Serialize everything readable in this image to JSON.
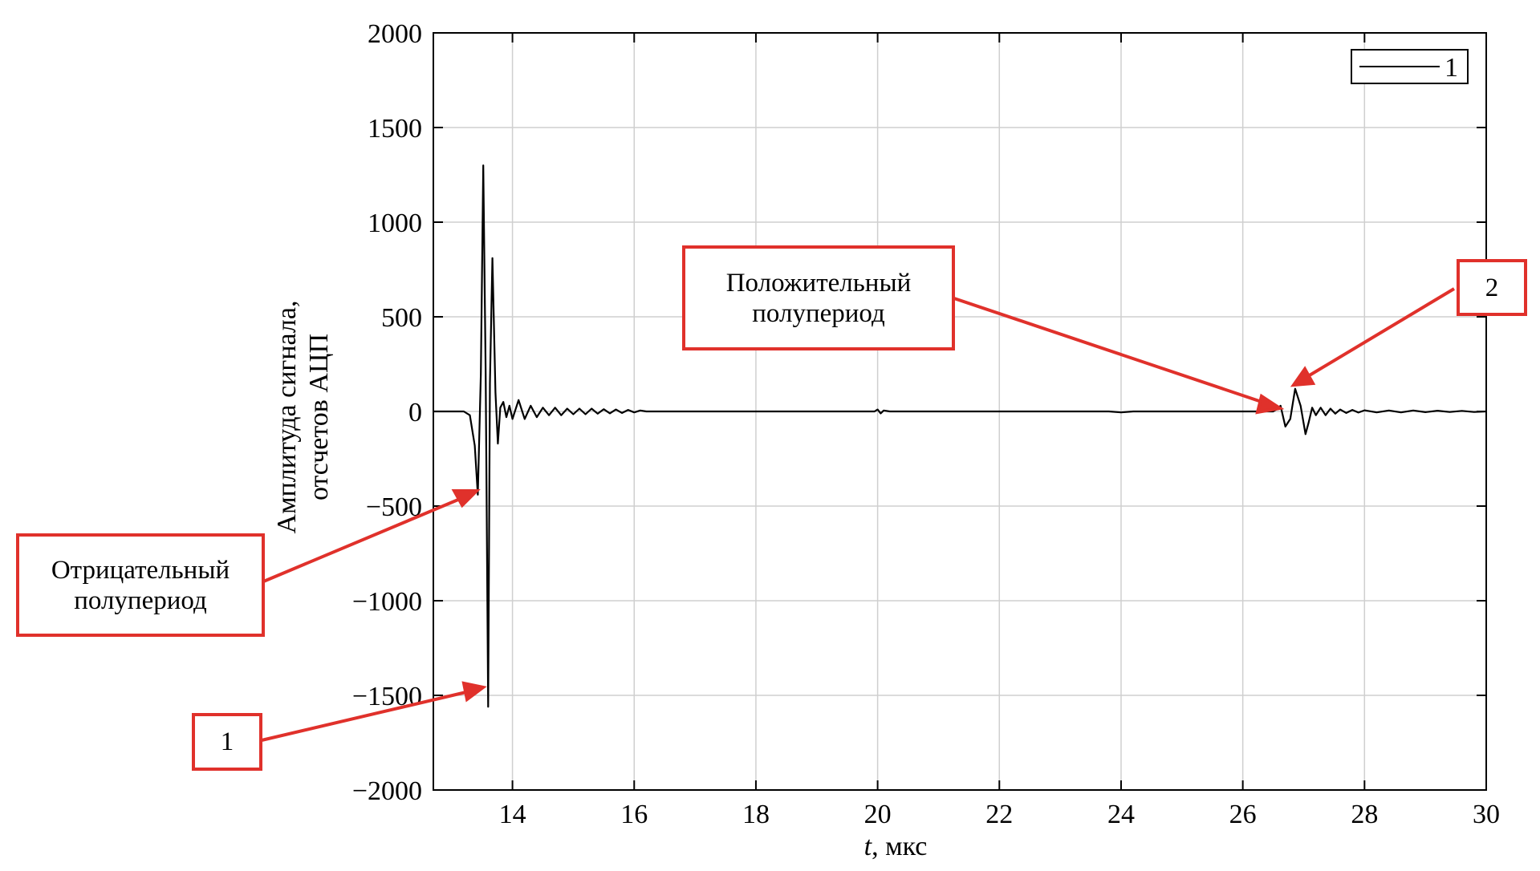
{
  "chart_data": {
    "type": "line",
    "xlabel_italic": "t",
    "xlabel_rest": ", мкс",
    "ylabel_line1": "Амплитуда сигнала,",
    "ylabel_line2": "отсчетов АЦП",
    "xlim": [
      12.7,
      30
    ],
    "ylim": [
      -2000,
      2000
    ],
    "xticks": [
      14,
      16,
      18,
      20,
      22,
      24,
      26,
      28,
      30
    ],
    "yticks": [
      2000,
      1500,
      1000,
      500,
      0,
      -500,
      -1000,
      -1500,
      -2000
    ],
    "ytick_labels": [
      "2000",
      "1500",
      "1000",
      "500",
      "0",
      "−500",
      "−1000",
      "−1500",
      "−2000"
    ],
    "grid": true,
    "legend_position": "top-right",
    "series": [
      {
        "name": "1",
        "color": "#000000",
        "x": [
          12.7,
          13.2,
          13.3,
          13.38,
          13.43,
          13.48,
          13.52,
          13.56,
          13.6,
          13.63,
          13.67,
          13.72,
          13.76,
          13.8,
          13.85,
          13.9,
          13.95,
          14.0,
          14.05,
          14.1,
          14.2,
          14.3,
          14.4,
          14.5,
          14.6,
          14.7,
          14.8,
          14.9,
          15.0,
          15.1,
          15.2,
          15.3,
          15.4,
          15.5,
          15.6,
          15.7,
          15.8,
          15.9,
          16.0,
          16.1,
          16.2,
          16.5,
          18.0,
          19.95,
          20.0,
          20.05,
          20.1,
          20.2,
          20.4,
          22.0,
          23.8,
          24.0,
          24.2,
          26.0,
          26.4,
          26.5,
          26.55,
          26.62,
          26.7,
          26.78,
          26.86,
          26.95,
          27.03,
          27.08,
          27.14,
          27.2,
          27.28,
          27.36,
          27.44,
          27.52,
          27.6,
          27.7,
          27.8,
          27.9,
          28.0,
          28.2,
          28.4,
          28.6,
          28.8,
          29.0,
          29.2,
          29.4,
          29.6,
          29.8,
          30.0
        ],
        "y": [
          0,
          0,
          -20,
          -180,
          -440,
          200,
          1300,
          200,
          -1560,
          150,
          810,
          100,
          -170,
          20,
          50,
          -30,
          30,
          -40,
          10,
          60,
          -40,
          30,
          -30,
          20,
          -20,
          20,
          -20,
          15,
          -15,
          15,
          -15,
          15,
          -12,
          12,
          -10,
          10,
          -8,
          8,
          -5,
          5,
          0,
          0,
          0,
          0,
          10,
          -10,
          5,
          0,
          0,
          0,
          0,
          -5,
          0,
          0,
          0,
          0,
          10,
          30,
          -80,
          -40,
          120,
          30,
          -120,
          -60,
          20,
          -20,
          20,
          -20,
          15,
          -12,
          10,
          -8,
          8,
          -6,
          6,
          -5,
          5,
          -5,
          5,
          -4,
          4,
          -3,
          3,
          -3,
          0
        ]
      }
    ]
  },
  "annotations": {
    "negative_half": "Отрицательный\nполупериод",
    "positive_half": "Положительный\nполупериод",
    "marker_1": "1",
    "marker_2": "2"
  },
  "colors": {
    "callout": "#e0312b",
    "grid": "#cfcfcf",
    "line": "#000000"
  }
}
